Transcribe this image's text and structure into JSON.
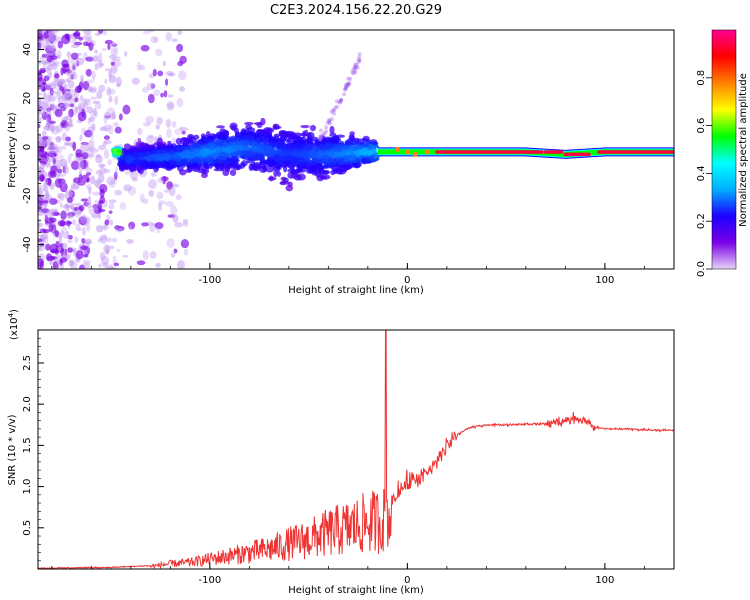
{
  "title": "C2E3.2024.156.22.20.G29",
  "colors": {
    "snr_line": "#ee3333",
    "axis": "#000000",
    "spectrogram_background": "#ffffff"
  },
  "chart_data": [
    {
      "type": "heatmap",
      "xlabel": "Height of straight line (km)",
      "ylabel": "Frequency (Hz)",
      "xlim": [
        -187,
        135
      ],
      "ylim": [
        -50,
        48
      ],
      "x_ticks": [
        {
          "value": -100,
          "label": "-100"
        },
        {
          "value": 0,
          "label": "0"
        },
        {
          "value": 100,
          "label": "100"
        }
      ],
      "y_ticks": [
        {
          "value": -40,
          "label": "-40"
        },
        {
          "value": -20,
          "label": "-20"
        },
        {
          "value": 0,
          "label": "0"
        },
        {
          "value": 20,
          "label": "20"
        },
        {
          "value": 40,
          "label": "40"
        }
      ],
      "colorbar": {
        "label": "Normalized spectral amplitude",
        "range": [
          0,
          1
        ],
        "ticks": [
          {
            "value": 0.0,
            "label": "0.0"
          },
          {
            "value": 0.2,
            "label": "0.2"
          },
          {
            "value": 0.4,
            "label": "0.4"
          },
          {
            "value": 0.6,
            "label": "0.6"
          },
          {
            "value": 0.8,
            "label": "0.8"
          }
        ],
        "colormap": [
          "#e6d5f7",
          "#7a00e6",
          "#1c00ff",
          "#00b0ff",
          "#00ffff",
          "#00ff00",
          "#ffff00",
          "#ff8000",
          "#ff0000",
          "#ff0090"
        ]
      },
      "signal_trace": [
        {
          "x": -145,
          "center_hz": -5,
          "spread_hz": 5,
          "amplitude": 0.3
        },
        {
          "x": -120,
          "center_hz": -4,
          "spread_hz": 6,
          "amplitude": 0.35
        },
        {
          "x": -100,
          "center_hz": -2,
          "spread_hz": 8,
          "amplitude": 0.4
        },
        {
          "x": -80,
          "center_hz": 0,
          "spread_hz": 10,
          "amplitude": 0.35
        },
        {
          "x": -60,
          "center_hz": -3,
          "spread_hz": 12,
          "amplitude": 0.3
        },
        {
          "x": -40,
          "center_hz": -3,
          "spread_hz": 10,
          "amplitude": 0.35
        },
        {
          "x": -20,
          "center_hz": -2,
          "spread_hz": 5,
          "amplitude": 0.45
        },
        {
          "x": 0,
          "center_hz": -2,
          "spread_hz": 2,
          "amplitude": 0.6
        },
        {
          "x": 20,
          "center_hz": -2,
          "spread_hz": 1.5,
          "amplitude": 0.8
        },
        {
          "x": 40,
          "center_hz": -2,
          "spread_hz": 1.5,
          "amplitude": 0.9
        },
        {
          "x": 60,
          "center_hz": -2,
          "spread_hz": 1.5,
          "amplitude": 0.9
        },
        {
          "x": 80,
          "center_hz": -3,
          "spread_hz": 2,
          "amplitude": 0.85
        },
        {
          "x": 100,
          "center_hz": -2,
          "spread_hz": 1.5,
          "amplitude": 0.9
        },
        {
          "x": 135,
          "center_hz": -2,
          "spread_hz": 1.5,
          "amplitude": 0.9
        }
      ]
    },
    {
      "type": "line",
      "xlabel": "Height of straight line (km)",
      "ylabel": "SNR (10 * v/v)",
      "y_multiplier_label": "(x10",
      "y_multiplier_exponent": "4",
      "y_multiplier_close": ")",
      "xlim": [
        -187,
        135
      ],
      "ylim": [
        0,
        2.9
      ],
      "x_ticks": [
        {
          "value": -100,
          "label": "-100"
        },
        {
          "value": 0,
          "label": "0"
        },
        {
          "value": 100,
          "label": "100"
        }
      ],
      "y_ticks": [
        {
          "value": 0.5,
          "label": "0.5"
        },
        {
          "value": 1.0,
          "label": "1.0"
        },
        {
          "value": 1.5,
          "label": "1.5"
        },
        {
          "value": 2.0,
          "label": "2.0"
        },
        {
          "value": 2.5,
          "label": "2.5"
        }
      ],
      "series": [
        {
          "x": [
            -187,
            -150,
            -130,
            -120,
            -110,
            -100,
            -90,
            -80,
            -70,
            -60,
            -50,
            -40,
            -30,
            -20,
            -12,
            -8,
            0,
            5,
            10,
            15,
            20,
            25,
            30,
            35,
            40,
            50,
            60,
            70,
            75,
            80,
            85,
            90,
            95,
            100,
            110,
            120,
            135
          ],
          "y": [
            0.01,
            0.02,
            0.04,
            0.08,
            0.1,
            0.15,
            0.2,
            0.25,
            0.3,
            0.38,
            0.45,
            0.55,
            0.62,
            0.7,
            0.75,
            0.85,
            1.05,
            1.1,
            1.15,
            1.3,
            1.5,
            1.62,
            1.7,
            1.73,
            1.75,
            1.75,
            1.76,
            1.76,
            1.78,
            1.8,
            1.82,
            1.8,
            1.72,
            1.7,
            1.7,
            1.69,
            1.68
          ]
        }
      ],
      "spike": {
        "x": -11,
        "y": 2.9
      }
    }
  ]
}
